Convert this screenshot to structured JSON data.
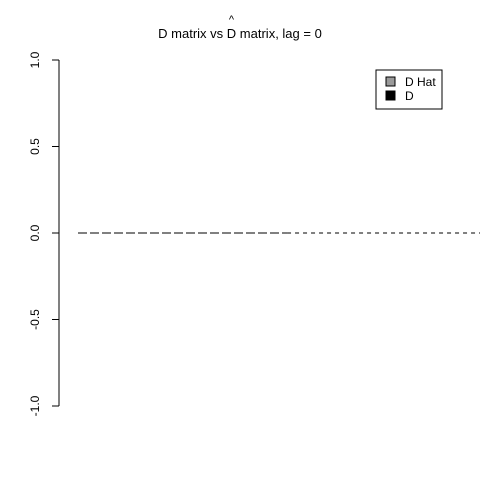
{
  "chart_data": {
    "type": "line",
    "title": {
      "prefix": "D matrix vs ",
      "hat_symbol": "D",
      "hat_mark": "^",
      "suffix": " matrix, lag = 0"
    },
    "xlabel": "",
    "ylabel": "",
    "ylim": [
      -1.0,
      1.0
    ],
    "yticks": [
      1.0,
      0.5,
      0.0,
      -0.5,
      -1.0
    ],
    "ytick_labels": [
      "1.0",
      "0.5",
      "0.0",
      "-0.5",
      "-1.0"
    ],
    "x_extent": [
      0,
      1
    ],
    "series": [
      {
        "name": "D Hat",
        "color": "#9a9a9a",
        "style": "long-dash",
        "y": 0.0,
        "x_range": [
          0.0,
          0.52
        ]
      },
      {
        "name": "D",
        "color": "#000000",
        "style": "short-dash",
        "y": 0.0,
        "x_range": [
          0.52,
          1.0
        ]
      }
    ],
    "legend": {
      "position": "top-right",
      "entries": [
        {
          "label": "D Hat",
          "color": "#9a9a9a"
        },
        {
          "label": "D",
          "color": "#000000"
        }
      ]
    }
  }
}
